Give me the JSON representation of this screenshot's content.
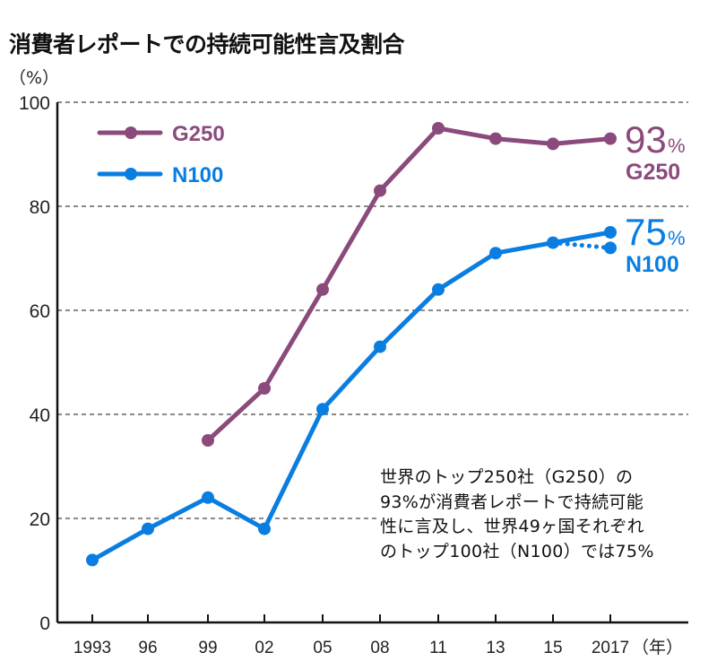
{
  "chart_data": {
    "type": "line",
    "title": "消費者レポートでの持続可能性言及割合",
    "ylabel": "（%）",
    "xlabel": "（年）",
    "ylim": [
      0,
      100
    ],
    "yticks": [
      0,
      20,
      40,
      60,
      80,
      100
    ],
    "grid": "horizontal dashed",
    "categories": [
      "1993",
      "96",
      "99",
      "02",
      "05",
      "08",
      "11",
      "13",
      "15",
      "2017"
    ],
    "series": [
      {
        "name": "G250",
        "color": "#8b4a7c",
        "values": [
          null,
          null,
          35,
          45,
          64,
          83,
          95,
          93,
          92,
          93
        ]
      },
      {
        "name": "N100",
        "color": "#0a7ee0",
        "values": [
          12,
          18,
          24,
          18,
          41,
          53,
          64,
          71,
          73,
          75
        ],
        "dotted_extension": {
          "from": "15",
          "to": "2017",
          "value": 72
        }
      }
    ],
    "legend": {
      "placement": "top-left",
      "entries": [
        "G250",
        "N100"
      ]
    },
    "end_labels": [
      {
        "series": "G250",
        "value": "93",
        "unit": "%",
        "name": "G250"
      },
      {
        "series": "N100",
        "value": "75",
        "unit": "%",
        "name": "N100"
      }
    ],
    "annotation": [
      "世界のトップ250社（G250）の",
      "93%が消費者レポートで持続可能",
      "性に言及し、世界49ヶ国それぞれ",
      "のトップ100社（N100）では75%"
    ]
  }
}
